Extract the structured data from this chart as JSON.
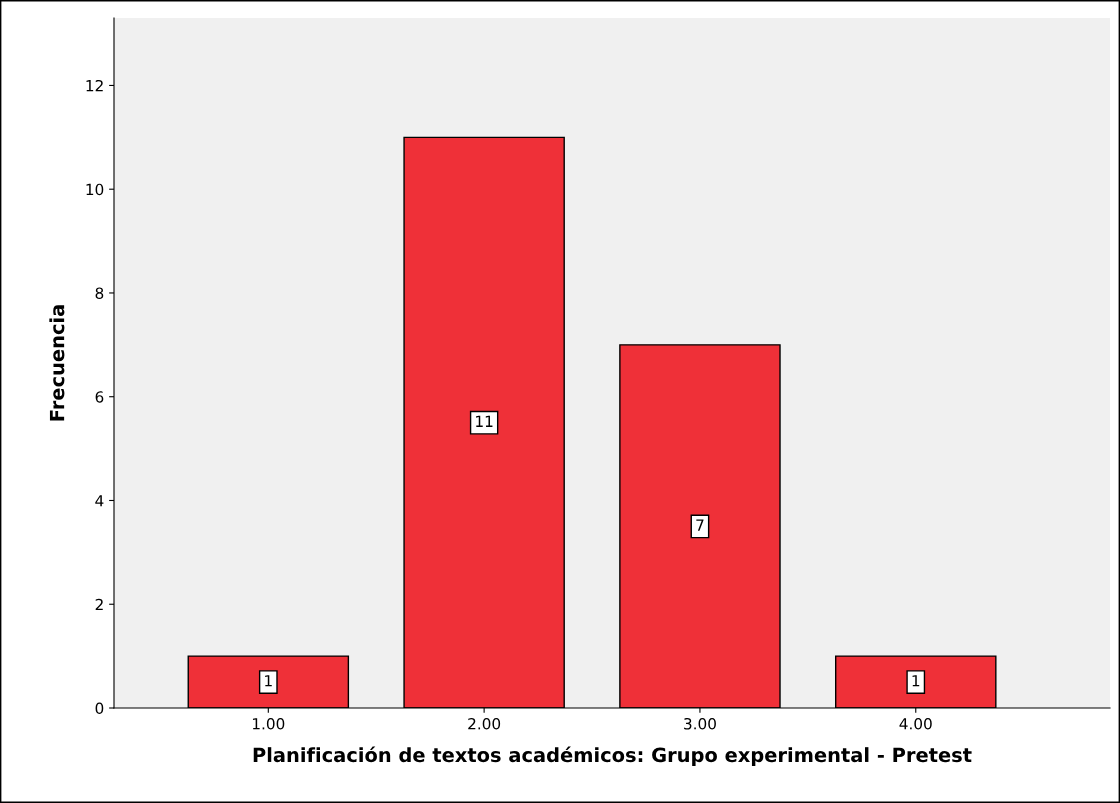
{
  "chart_data": {
    "type": "bar",
    "xlabel": "Planificación de textos académicos: Grupo experimental - Pretest",
    "ylabel": "Frecuencia",
    "categories": [
      "1.00",
      "2.00",
      "3.00",
      "4.00"
    ],
    "values": [
      1,
      11,
      7,
      1
    ],
    "color": "#ef3038",
    "ylim": [
      0,
      13.3
    ],
    "yticks": [
      0,
      2,
      4,
      6,
      8,
      10,
      12
    ],
    "grid": false,
    "data_labels": true
  }
}
